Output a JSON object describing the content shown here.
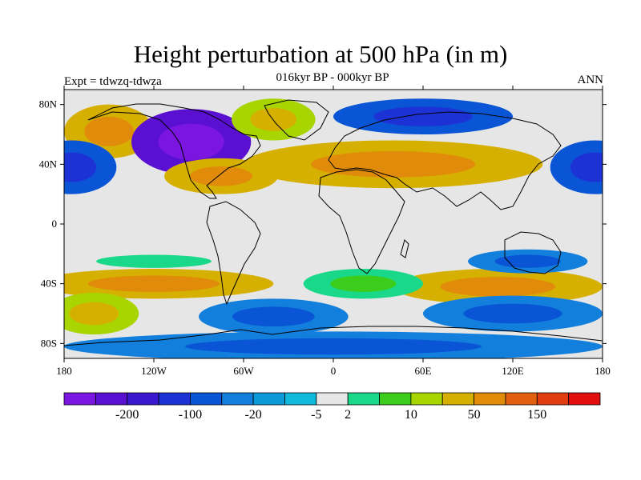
{
  "title": "Height perturbation at 500 hPa (in m)",
  "subtitle": "016kyr BP - 000kyr BP",
  "left_label": "Expt = tdwzq-tdwza",
  "right_label": "ANN",
  "colors": {
    "background_field": "#e6e6e6",
    "coast": "#000000"
  },
  "map": {
    "projection": "cylindrical-equidistant",
    "lon_range": [
      -180,
      180
    ],
    "lat_range": [
      -90,
      90
    ],
    "lon_ticks": [
      {
        "value": -180,
        "label": "180"
      },
      {
        "value": -120,
        "label": "120W"
      },
      {
        "value": -60,
        "label": "60W"
      },
      {
        "value": 0,
        "label": "0"
      },
      {
        "value": 60,
        "label": "60E"
      },
      {
        "value": 120,
        "label": "120E"
      },
      {
        "value": 180,
        "label": "180"
      }
    ],
    "lat_ticks": [
      {
        "value": 80,
        "label": "80N"
      },
      {
        "value": 40,
        "label": "40N"
      },
      {
        "value": 0,
        "label": "0"
      },
      {
        "value": -40,
        "label": "40S"
      },
      {
        "value": -80,
        "label": "80S"
      }
    ],
    "anomalies": [
      {
        "lon": -150,
        "lat": 62,
        "rx": 30,
        "ry": 18,
        "level": 12
      },
      {
        "lon": -95,
        "lat": 55,
        "rx": 40,
        "ry": 22,
        "level": 1
      },
      {
        "lon": -40,
        "lat": 70,
        "rx": 28,
        "ry": 14,
        "level": 11
      },
      {
        "lon": -75,
        "lat": 32,
        "rx": 38,
        "ry": 12,
        "level": 12
      },
      {
        "lon": 40,
        "lat": 40,
        "rx": 100,
        "ry": 16,
        "level": 12
      },
      {
        "lon": 60,
        "lat": 72,
        "rx": 60,
        "ry": 12,
        "level": 4
      },
      {
        "lon": -175,
        "lat": 38,
        "rx": 30,
        "ry": 18,
        "level": 4
      },
      {
        "lon": 175,
        "lat": 38,
        "rx": 30,
        "ry": 18,
        "level": 4
      },
      {
        "lon": -120,
        "lat": -25,
        "rx": 70,
        "ry": 8,
        "level": 8
      },
      {
        "lon": -120,
        "lat": -40,
        "rx": 80,
        "ry": 10,
        "level": 12
      },
      {
        "lon": 110,
        "lat": -42,
        "rx": 70,
        "ry": 12,
        "level": 12
      },
      {
        "lon": 130,
        "lat": -25,
        "rx": 40,
        "ry": 8,
        "level": 5
      },
      {
        "lon": 20,
        "lat": -40,
        "rx": 40,
        "ry": 10,
        "level": 9
      },
      {
        "lon": -160,
        "lat": -60,
        "rx": 30,
        "ry": 14,
        "level": 11
      },
      {
        "lon": -40,
        "lat": -62,
        "rx": 50,
        "ry": 12,
        "level": 5
      },
      {
        "lon": 120,
        "lat": -60,
        "rx": 60,
        "ry": 12,
        "level": 5
      },
      {
        "lon": 0,
        "lat": -82,
        "rx": 180,
        "ry": 10,
        "level": 5
      }
    ]
  },
  "colorbar": {
    "colors": [
      "#7a16e0",
      "#5a10d0",
      "#3a18d0",
      "#1c32d4",
      "#0a55d6",
      "#137fdc",
      "#0a9ad8",
      "#10b8dc",
      "#e6e6e6",
      "#1ad88a",
      "#3ccc1c",
      "#a8d400",
      "#d6b000",
      "#e08c0a",
      "#e06010",
      "#e03c10",
      "#e00e0e"
    ],
    "labels": [
      {
        "after_box": 2,
        "text": "-200"
      },
      {
        "after_box": 4,
        "text": "-100"
      },
      {
        "after_box": 6,
        "text": "-20"
      },
      {
        "after_box": 8,
        "text": "-5"
      },
      {
        "after_box": 9,
        "text": "2"
      },
      {
        "after_box": 11,
        "text": "10"
      },
      {
        "after_box": 13,
        "text": "50"
      },
      {
        "after_box": 15,
        "text": "150"
      }
    ]
  }
}
